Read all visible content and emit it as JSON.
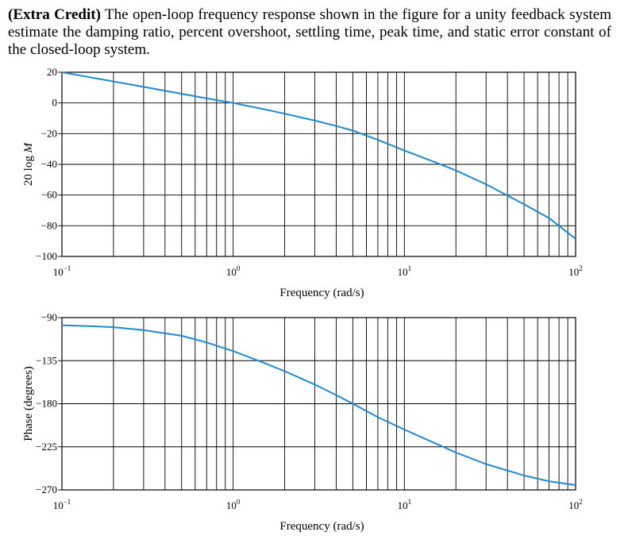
{
  "problem": {
    "bold_label": "(Extra Credit)",
    "text": "The open-loop frequency response shown in the figure for a unity feedback system estimate the damping ratio, percent overshoot, settling time, peak time, and static error constant of the closed-loop system."
  },
  "chart_data": [
    {
      "type": "line",
      "xscale": "log",
      "xlim": [
        0.1,
        100
      ],
      "ylim": [
        -100,
        20
      ],
      "xlabel": "Frequency (rad/s)",
      "ylabel": "20 log M",
      "xticks": [
        {
          "base": "10",
          "exp": "−1"
        },
        {
          "base": "10",
          "exp": "0"
        },
        {
          "base": "10",
          "exp": "1"
        },
        {
          "base": "10",
          "exp": "2"
        }
      ],
      "yticks": [
        "20",
        "0",
        "−20",
        "−40",
        "−60",
        "−80",
        "−100"
      ],
      "ytick_values": [
        20,
        0,
        -20,
        -40,
        -60,
        -80,
        -100
      ],
      "grid": true,
      "color": "#1f8ad2",
      "series": [
        {
          "x": [
            0.1,
            0.15,
            0.2,
            0.3,
            0.5,
            0.7,
            1,
            1.5,
            2,
            3,
            4,
            5,
            7,
            10,
            15,
            20,
            30,
            50,
            70,
            100
          ],
          "y": [
            20,
            16.5,
            14,
            10.5,
            6,
            3,
            0,
            -4,
            -7,
            -11.5,
            -15,
            -18,
            -24,
            -31,
            -38.5,
            -44,
            -53,
            -66,
            -75,
            -88.5
          ]
        }
      ]
    },
    {
      "type": "line",
      "xscale": "log",
      "xlim": [
        0.1,
        100
      ],
      "ylim": [
        -270,
        -90
      ],
      "xlabel": "Frequency (rad/s)",
      "ylabel": "Phase (degrees)",
      "xticks": [
        {
          "base": "10",
          "exp": "−1"
        },
        {
          "base": "10",
          "exp": "0"
        },
        {
          "base": "10",
          "exp": "1"
        },
        {
          "base": "10",
          "exp": "2"
        }
      ],
      "yticks": [
        "−90",
        "−135",
        "−180",
        "−225",
        "−270"
      ],
      "ytick_values": [
        -90,
        -135,
        -180,
        -225,
        -270
      ],
      "grid": true,
      "color": "#1f8ad2",
      "series": [
        {
          "x": [
            0.1,
            0.15,
            0.2,
            0.3,
            0.5,
            0.7,
            1,
            1.5,
            2,
            3,
            4,
            5,
            7,
            10,
            15,
            20,
            30,
            50,
            70,
            100
          ],
          "y": [
            -98,
            -99,
            -100,
            -103,
            -109,
            -116,
            -125,
            -137,
            -146,
            -160,
            -171,
            -180,
            -194,
            -207,
            -221,
            -231,
            -243,
            -255,
            -261,
            -265
          ]
        }
      ]
    }
  ]
}
